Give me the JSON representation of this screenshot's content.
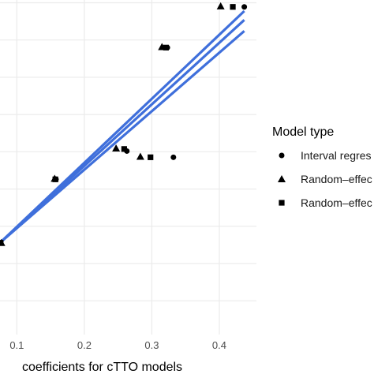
{
  "chart_data": {
    "type": "scatter",
    "xlabel": "coefficients for cTTO models",
    "ylabel": "",
    "xlim": [
      0.075,
      0.455
    ],
    "ylim": [
      0.005,
      0.49
    ],
    "x_ticks": [
      0.1,
      0.2,
      0.3,
      0.4
    ],
    "x_tick_labels": [
      "0.1",
      "0.2",
      "0.3",
      "0.4"
    ],
    "y_grid": [
      0.054,
      0.108,
      0.162,
      0.216,
      0.27,
      0.324,
      0.378,
      0.432,
      0.486
    ],
    "grid": true,
    "legend": {
      "title": "Model type",
      "placement": "right",
      "entries": [
        {
          "label": "Interval regres",
          "shape": "circle"
        },
        {
          "label": "Random–effec",
          "shape": "triangle"
        },
        {
          "label": "Random–effec",
          "shape": "square"
        }
      ]
    },
    "series": [
      {
        "shape": "circle",
        "points": [
          [
            0.075,
            0.138
          ],
          [
            0.158,
            0.23
          ],
          [
            0.263,
            0.271
          ],
          [
            0.332,
            0.262
          ],
          [
            0.323,
            0.421
          ],
          [
            0.437,
            0.48
          ]
        ]
      },
      {
        "shape": "triangle",
        "points": [
          [
            0.077,
            0.138
          ],
          [
            0.156,
            0.231
          ],
          [
            0.247,
            0.275
          ],
          [
            0.283,
            0.263
          ],
          [
            0.315,
            0.422
          ],
          [
            0.402,
            0.481
          ]
        ]
      },
      {
        "shape": "square",
        "points": [
          [
            0.076,
            0.138
          ],
          [
            0.157,
            0.23
          ],
          [
            0.259,
            0.274
          ],
          [
            0.298,
            0.262
          ],
          [
            0.321,
            0.421
          ],
          [
            0.42,
            0.48
          ]
        ]
      }
    ],
    "fit_lines": [
      {
        "x": [
          0.075,
          0.437
        ],
        "y": [
          0.138,
          0.474
        ]
      },
      {
        "x": [
          0.075,
          0.437
        ],
        "y": [
          0.138,
          0.461
        ]
      },
      {
        "x": [
          0.075,
          0.437
        ],
        "y": [
          0.138,
          0.445
        ]
      }
    ],
    "colors": {
      "fit": "#3f6fdb",
      "points": "#000000",
      "grid": "#ebebeb"
    }
  }
}
